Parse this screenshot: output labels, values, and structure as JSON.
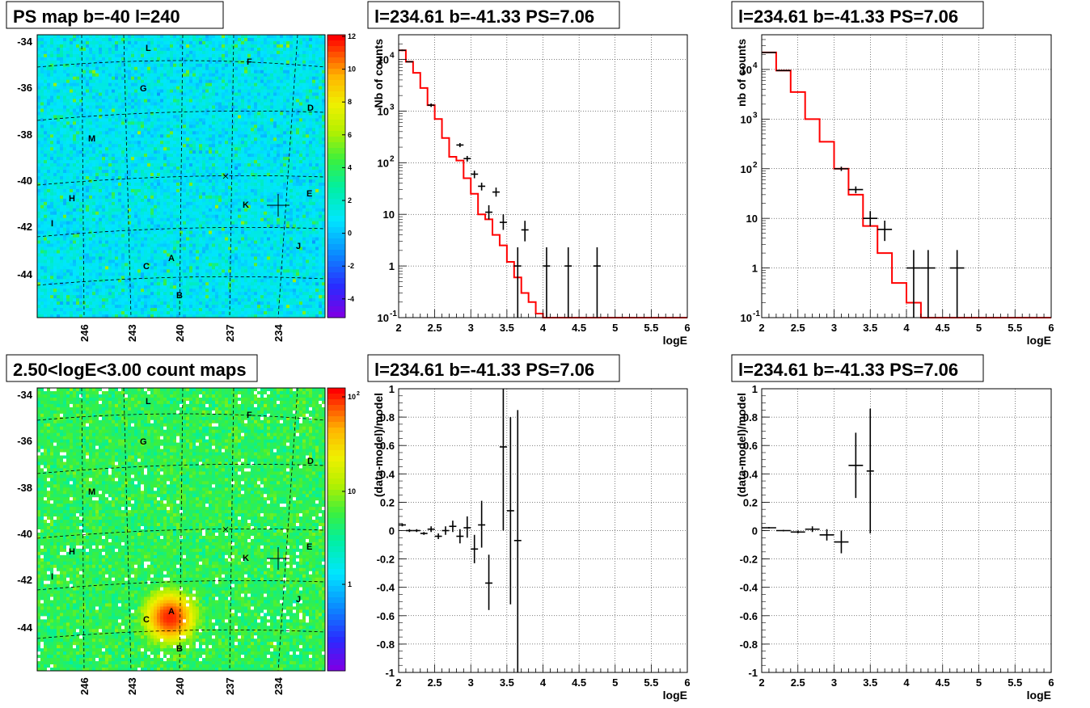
{
  "panels": {
    "map1": {
      "title": "PS map b=-40 l=240",
      "colorbar_ticks": [
        "12",
        "10",
        "8",
        "6",
        "4",
        "2",
        "0",
        "-2",
        "-4"
      ]
    },
    "spec1": {
      "title": "l=234.61 b=-41.33 PS=7.06"
    },
    "spec2": {
      "title": "l=234.61 b=-41.33 PS=7.06"
    },
    "map2": {
      "title": "2.50<logE<3.00 count maps",
      "colorbar_ticks": [
        "10",
        "10",
        "1"
      ],
      "colorbar_exponents": [
        "2",
        "",
        ""
      ]
    },
    "res1": {
      "title": "l=234.61 b=-41.33 PS=7.06"
    },
    "res2": {
      "title": "l=234.61 b=-41.33 PS=7.06"
    }
  },
  "maps": {
    "y_ticks": [
      "-34",
      "-36",
      "-38",
      "-40",
      "-42",
      "-44"
    ],
    "x_ticks": [
      "246",
      "243",
      "240",
      "237",
      "234"
    ],
    "region_labels": [
      "L",
      "F",
      "G",
      "D",
      "M",
      "E",
      "H",
      "K",
      "I",
      "J",
      "A",
      "C",
      "B"
    ],
    "grid_style": "dashed",
    "marker": "cross"
  },
  "chart_data": [
    {
      "type": "heatmap",
      "panel": "map1",
      "title": "PS map b=-40 l=240",
      "colorscale": "rainbow",
      "zlim": [
        -5,
        12
      ],
      "xlabel": "",
      "ylabel": "",
      "xlim": [
        248,
        232
      ],
      "ylim": [
        -46,
        -33.5
      ],
      "x_ticks": [
        246,
        243,
        240,
        237,
        234
      ],
      "y_ticks": [
        -34,
        -36,
        -38,
        -40,
        -42,
        -44
      ],
      "background_level": 1,
      "source": {
        "l": 234.61,
        "b": -41.33
      }
    },
    {
      "type": "heatmap",
      "panel": "map2",
      "title": "2.50<logE<3.00 count maps",
      "colorscale": "rainbow",
      "z_log": true,
      "zlim": [
        0.1,
        150
      ],
      "xlabel": "",
      "ylabel": "",
      "xlim": [
        248,
        232
      ],
      "ylim": [
        -46,
        -33.5
      ],
      "x_ticks": [
        246,
        243,
        240,
        237,
        234
      ],
      "y_ticks": [
        -34,
        -36,
        -38,
        -40,
        -42,
        -44
      ],
      "background_level": 5,
      "hotspot": {
        "label": "A",
        "peak": 120
      }
    },
    {
      "type": "line",
      "panel": "spec1",
      "title": "l=234.61 b=-41.33 PS=7.06",
      "xlabel": "logE",
      "ylabel": "Nb of counts",
      "xlim": [
        2,
        6
      ],
      "ylim": [
        0.1,
        30000
      ],
      "y_log": true,
      "x_ticks": [
        2,
        2.5,
        3,
        3.5,
        4,
        4.5,
        5,
        5.5,
        6
      ],
      "y_ticks": [
        {
          "v": 0.1,
          "m": "10",
          "e": "-1"
        },
        {
          "v": 1,
          "m": "1",
          "e": ""
        },
        {
          "v": 10,
          "m": "10",
          "e": ""
        },
        {
          "v": 100,
          "m": "10",
          "e": "2"
        },
        {
          "v": 1000,
          "m": "10",
          "e": "3"
        },
        {
          "v": 10000,
          "m": "10",
          "e": "4"
        }
      ],
      "grid": true,
      "series": [
        {
          "style": "step",
          "color": "#ff0000",
          "bins": [
            2,
            2.1,
            2.2,
            2.3,
            2.4,
            2.5,
            2.6,
            2.7,
            2.8,
            2.9,
            3.0,
            3.1,
            3.2,
            3.3,
            3.4,
            3.5,
            3.6,
            3.7,
            3.8,
            3.9,
            4.0,
            4.1,
            6.0
          ],
          "values": [
            15000,
            9000,
            5500,
            2800,
            1300,
            700,
            300,
            130,
            110,
            50,
            25,
            10,
            8,
            4,
            2.5,
            1.2,
            0.6,
            0.3,
            0.2,
            0.12,
            0.1,
            0.1
          ]
        },
        {
          "style": "points",
          "color": "#000000",
          "points": [
            {
              "x": 2.05,
              "y": 15000,
              "xe": 0.05,
              "ylo": 14500,
              "yhi": 15500
            },
            {
              "x": 2.15,
              "y": 9000,
              "xe": 0.05,
              "ylo": 8800,
              "yhi": 9200
            },
            {
              "x": 2.45,
              "y": 1300,
              "xe": 0.05,
              "ylo": 1200,
              "yhi": 1400
            },
            {
              "x": 2.85,
              "y": 220,
              "xe": 0.05,
              "ylo": 200,
              "yhi": 240
            },
            {
              "x": 2.95,
              "y": 120,
              "xe": 0.05,
              "ylo": 105,
              "yhi": 135
            },
            {
              "x": 3.05,
              "y": 60,
              "xe": 0.05,
              "ylo": 50,
              "yhi": 70
            },
            {
              "x": 3.15,
              "y": 35,
              "xe": 0.05,
              "ylo": 29,
              "yhi": 41
            },
            {
              "x": 3.25,
              "y": 11,
              "xe": 0.05,
              "ylo": 8,
              "yhi": 15
            },
            {
              "x": 3.35,
              "y": 27,
              "xe": 0.05,
              "ylo": 22,
              "yhi": 33
            },
            {
              "x": 3.45,
              "y": 7,
              "xe": 0.05,
              "ylo": 5,
              "yhi": 10
            },
            {
              "x": 3.65,
              "y": 1,
              "xe": 0.05,
              "ylo": 0.1,
              "yhi": 2.3
            },
            {
              "x": 3.75,
              "y": 5,
              "xe": 0.05,
              "ylo": 3,
              "yhi": 7.5
            },
            {
              "x": 4.05,
              "y": 1,
              "xe": 0.05,
              "ylo": 0.1,
              "yhi": 2.3
            },
            {
              "x": 4.35,
              "y": 1,
              "xe": 0.05,
              "ylo": 0.1,
              "yhi": 2.3
            },
            {
              "x": 4.75,
              "y": 1,
              "xe": 0.05,
              "ylo": 0.1,
              "yhi": 2.3
            }
          ]
        }
      ]
    },
    {
      "type": "line",
      "panel": "spec2",
      "title": "l=234.61 b=-41.33 PS=7.06",
      "xlabel": "logE",
      "ylabel": "nb of counts",
      "xlim": [
        2,
        6
      ],
      "ylim": [
        0.1,
        50000
      ],
      "y_log": true,
      "x_ticks": [
        2,
        2.5,
        3,
        3.5,
        4,
        4.5,
        5,
        5.5,
        6
      ],
      "y_ticks": [
        {
          "v": 0.1,
          "m": "10",
          "e": "-1"
        },
        {
          "v": 1,
          "m": "1",
          "e": ""
        },
        {
          "v": 10,
          "m": "10",
          "e": ""
        },
        {
          "v": 100,
          "m": "10",
          "e": "2"
        },
        {
          "v": 1000,
          "m": "10",
          "e": "3"
        },
        {
          "v": 10000,
          "m": "10",
          "e": "4"
        }
      ],
      "grid": true,
      "series": [
        {
          "style": "step",
          "color": "#ff0000",
          "bins": [
            2,
            2.2,
            2.4,
            2.6,
            2.8,
            3.0,
            3.2,
            3.4,
            3.6,
            3.8,
            4.0,
            4.2,
            6.0
          ],
          "values": [
            22000,
            9500,
            3500,
            1000,
            350,
            100,
            30,
            7,
            2,
            0.5,
            0.2,
            0.1
          ]
        },
        {
          "style": "points",
          "color": "#000000",
          "points": [
            {
              "x": 2.1,
              "y": 22000,
              "xe": 0.1,
              "ylo": 21500,
              "yhi": 22500
            },
            {
              "x": 2.3,
              "y": 9500,
              "xe": 0.1,
              "ylo": 9300,
              "yhi": 9700
            },
            {
              "x": 3.1,
              "y": 100,
              "xe": 0.1,
              "ylo": 90,
              "yhi": 110
            },
            {
              "x": 3.3,
              "y": 38,
              "xe": 0.1,
              "ylo": 32,
              "yhi": 44
            },
            {
              "x": 3.5,
              "y": 10,
              "xe": 0.1,
              "ylo": 7,
              "yhi": 14
            },
            {
              "x": 3.7,
              "y": 6,
              "xe": 0.1,
              "ylo": 3.5,
              "yhi": 9
            },
            {
              "x": 4.1,
              "y": 1,
              "xe": 0.1,
              "ylo": 0.1,
              "yhi": 2.3
            },
            {
              "x": 4.3,
              "y": 1,
              "xe": 0.1,
              "ylo": 0.1,
              "yhi": 2.3
            },
            {
              "x": 4.7,
              "y": 1,
              "xe": 0.1,
              "ylo": 0.1,
              "yhi": 2.3
            }
          ]
        }
      ]
    },
    {
      "type": "scatter",
      "panel": "res1",
      "title": "l=234.61 b=-41.33 PS=7.06",
      "xlabel": "logE",
      "ylabel": "(data-model)/model",
      "xlim": [
        2,
        6
      ],
      "ylim": [
        -1,
        1
      ],
      "x_ticks": [
        2,
        2.5,
        3,
        3.5,
        4,
        4.5,
        5,
        5.5,
        6
      ],
      "y_ticks": [
        -1,
        -0.8,
        -0.6,
        -0.4,
        -0.2,
        0,
        0.2,
        0.4,
        0.6,
        0.8,
        1
      ],
      "grid": true,
      "series": [
        {
          "color": "#000000",
          "points": [
            {
              "x": 2.05,
              "y": 0.04,
              "xe": 0.05,
              "ylo": 0.03,
              "yhi": 0.05
            },
            {
              "x": 2.15,
              "y": 0.0,
              "xe": 0.05,
              "ylo": -0.01,
              "yhi": 0.01
            },
            {
              "x": 2.25,
              "y": 0.0,
              "xe": 0.05,
              "ylo": -0.01,
              "yhi": 0.01
            },
            {
              "x": 2.35,
              "y": -0.02,
              "xe": 0.05,
              "ylo": -0.03,
              "yhi": -0.01
            },
            {
              "x": 2.45,
              "y": 0.01,
              "xe": 0.05,
              "ylo": -0.01,
              "yhi": 0.03
            },
            {
              "x": 2.55,
              "y": -0.04,
              "xe": 0.05,
              "ylo": -0.06,
              "yhi": -0.02
            },
            {
              "x": 2.65,
              "y": 0.0,
              "xe": 0.05,
              "ylo": -0.03,
              "yhi": 0.03
            },
            {
              "x": 2.75,
              "y": 0.03,
              "xe": 0.05,
              "ylo": -0.01,
              "yhi": 0.07
            },
            {
              "x": 2.85,
              "y": -0.04,
              "xe": 0.05,
              "ylo": -0.09,
              "yhi": 0.01
            },
            {
              "x": 2.95,
              "y": 0.02,
              "xe": 0.05,
              "ylo": -0.05,
              "yhi": 0.1
            },
            {
              "x": 3.05,
              "y": -0.13,
              "xe": 0.05,
              "ylo": -0.23,
              "yhi": -0.03
            },
            {
              "x": 3.15,
              "y": 0.04,
              "xe": 0.05,
              "ylo": -0.12,
              "yhi": 0.21
            },
            {
              "x": 3.25,
              "y": -0.37,
              "xe": 0.05,
              "ylo": -0.56,
              "yhi": -0.17
            },
            {
              "x": 3.45,
              "y": 0.59,
              "xe": 0.05,
              "ylo": 0.0,
              "yhi": 1.0
            },
            {
              "x": 3.55,
              "y": 0.14,
              "xe": 0.05,
              "ylo": -0.52,
              "yhi": 0.8
            },
            {
              "x": 3.65,
              "y": -0.07,
              "xe": 0.05,
              "ylo": -1.0,
              "yhi": 0.85
            }
          ]
        }
      ]
    },
    {
      "type": "scatter",
      "panel": "res2",
      "title": "l=234.61 b=-41.33 PS=7.06",
      "xlabel": "logE",
      "ylabel": "(data-model)/model",
      "xlim": [
        2,
        6
      ],
      "ylim": [
        -1,
        1
      ],
      "x_ticks": [
        2,
        2.5,
        3,
        3.5,
        4,
        4.5,
        5,
        5.5,
        6
      ],
      "y_ticks": [
        -1,
        -0.8,
        -0.6,
        -0.4,
        -0.2,
        0,
        0.2,
        0.4,
        0.6,
        0.8,
        1
      ],
      "grid": true,
      "series": [
        {
          "color": "#000000",
          "points": [
            {
              "x": 2.1,
              "y": 0.02,
              "xe": 0.1,
              "ylo": 0.015,
              "yhi": 0.025
            },
            {
              "x": 2.3,
              "y": 0.0,
              "xe": 0.1,
              "ylo": -0.005,
              "yhi": 0.005
            },
            {
              "x": 2.5,
              "y": -0.01,
              "xe": 0.1,
              "ylo": -0.02,
              "yhi": 0.0
            },
            {
              "x": 2.7,
              "y": 0.01,
              "xe": 0.1,
              "ylo": -0.01,
              "yhi": 0.03
            },
            {
              "x": 2.9,
              "y": -0.03,
              "xe": 0.1,
              "ylo": -0.07,
              "yhi": 0.01
            },
            {
              "x": 3.1,
              "y": -0.08,
              "xe": 0.1,
              "ylo": -0.16,
              "yhi": 0.0
            },
            {
              "x": 3.3,
              "y": 0.46,
              "xe": 0.1,
              "ylo": 0.23,
              "yhi": 0.69
            },
            {
              "x": 3.5,
              "y": 0.42,
              "xe": 0.05,
              "ylo": -0.02,
              "yhi": 0.86
            }
          ]
        }
      ]
    }
  ]
}
